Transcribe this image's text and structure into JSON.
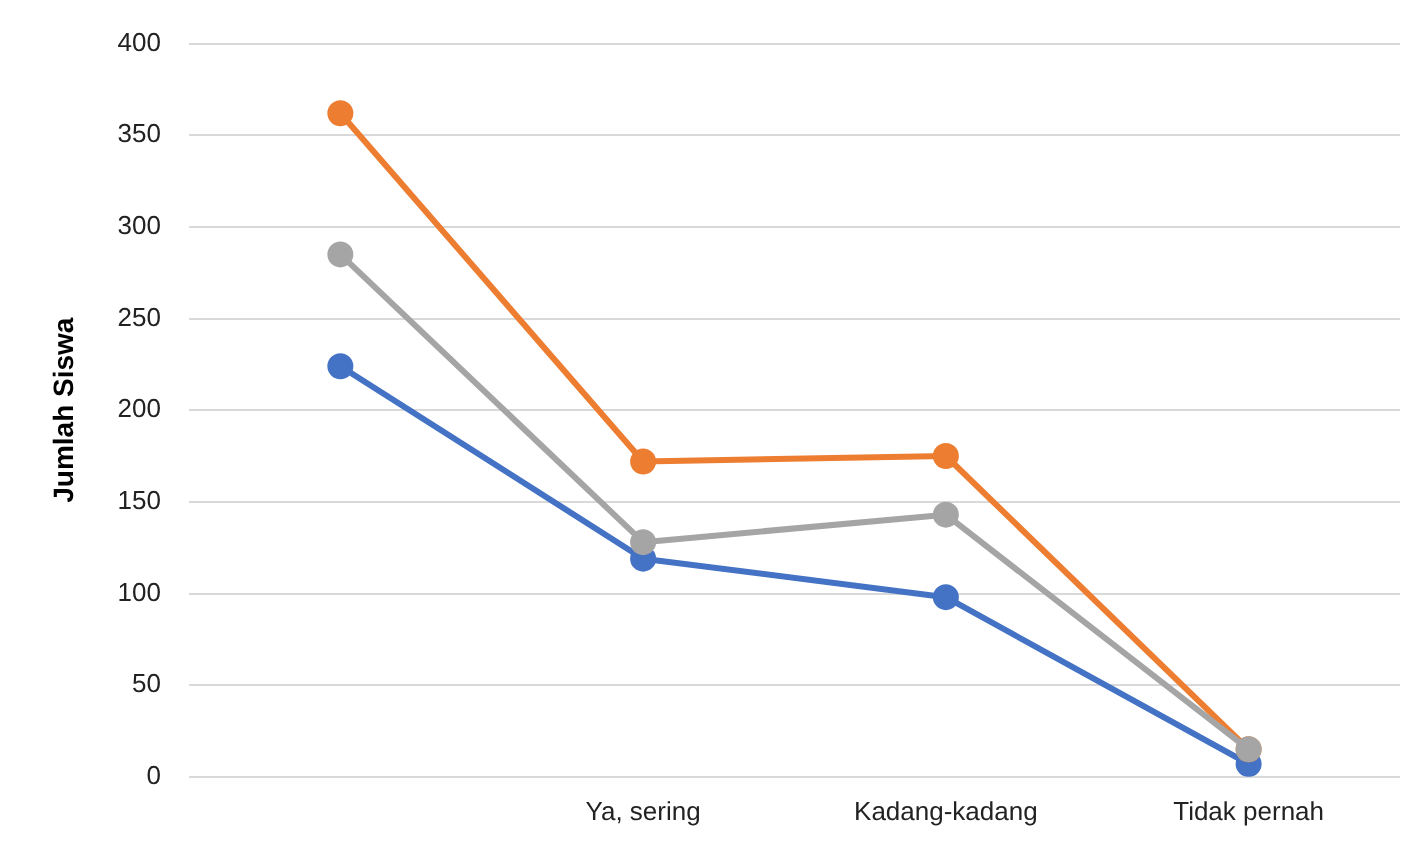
{
  "chart_data": {
    "type": "line",
    "ylabel": "Jumlah Siswa",
    "categories": [
      null,
      "Ya, sering",
      "Kadang-kadang",
      "Tidak pernah"
    ],
    "series": [
      {
        "color": "#4472c4",
        "values": [
          224,
          119,
          98,
          7
        ]
      },
      {
        "color": "#ed7d31",
        "values": [
          362,
          172,
          175,
          15
        ]
      },
      {
        "color": "#a5a5a5",
        "values": [
          285,
          128,
          143,
          15
        ]
      }
    ],
    "ylim": [
      0,
      400
    ],
    "yticks": [
      0,
      50,
      100,
      150,
      200,
      250,
      300,
      350,
      400
    ],
    "grid": "y",
    "legend": false,
    "marker": "circle",
    "line_style": "solid"
  }
}
